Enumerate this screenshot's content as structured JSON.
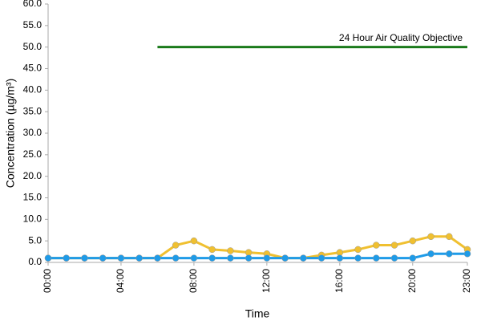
{
  "chart_data": {
    "type": "line",
    "y_label": "Concentration (µg/m³)",
    "x_label": "Time",
    "categories": [
      "00:00",
      null,
      null,
      null,
      "04:00",
      null,
      null,
      null,
      "08:00",
      null,
      null,
      null,
      "12:00",
      null,
      null,
      null,
      "16:00",
      null,
      null,
      null,
      "20:00",
      null,
      null,
      "23:00"
    ],
    "series": [
      {
        "color": "#f0c030",
        "marker": true,
        "values": [
          1,
          1,
          1,
          1,
          1,
          1,
          1,
          4,
          5,
          3,
          2.7,
          2.3,
          2,
          1,
          1,
          1.7,
          2.3,
          3,
          4,
          4,
          5,
          6,
          6,
          3
        ]
      },
      {
        "color": "#1e9be8",
        "marker": true,
        "values": [
          1,
          1,
          1,
          1,
          1,
          1,
          1,
          1,
          1,
          1,
          1,
          1,
          1,
          1,
          1,
          1,
          1,
          1,
          1,
          1,
          1,
          2,
          2,
          2
        ]
      },
      {
        "name": "24 Hour Air Quality Objective",
        "color": "#1a7a1a",
        "marker": false,
        "values": [
          null,
          null,
          null,
          null,
          null,
          null,
          50,
          50,
          50,
          50,
          50,
          50,
          50,
          50,
          50,
          50,
          50,
          50,
          50,
          50,
          50,
          50,
          50,
          50
        ]
      }
    ],
    "ylim": [
      0,
      60
    ],
    "yticks": [
      {
        "value": 0,
        "label": "0.0"
      },
      {
        "value": 5,
        "label": "5.0"
      },
      {
        "value": 10,
        "label": "10.0"
      },
      {
        "value": 15,
        "label": "15.0"
      },
      {
        "value": 20,
        "label": "20.0"
      },
      {
        "value": 25,
        "label": "25.0"
      },
      {
        "value": 30,
        "label": "30.0"
      },
      {
        "value": 35,
        "label": "35.0"
      },
      {
        "value": 40,
        "label": "40.0"
      },
      {
        "value": 45,
        "label": "45.0"
      },
      {
        "value": 50,
        "label": "50.0"
      },
      {
        "value": 55,
        "label": "55.0"
      },
      {
        "value": 60,
        "label": "60.0"
      }
    ],
    "grid": false
  }
}
